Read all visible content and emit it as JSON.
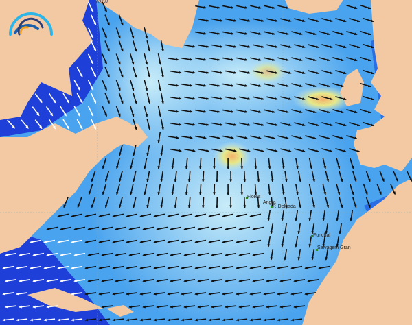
{
  "map": {
    "type": "wave-height-and-direction",
    "region": "North Atlantic",
    "colors": {
      "land": "#f2c9a2",
      "ocean_low": "#1e3fd8",
      "ocean_mid": "#4aa3ee",
      "ocean_high": "#bfe6f7",
      "swell_peak": "#f4b06a",
      "swell_warm": "#e6e88a",
      "arrow": "#111111",
      "arrow_coastal": "#ffffff"
    },
    "meridian_label": "63°W",
    "places": [
      {
        "name": "Flores"
      },
      {
        "name": "Angra"
      },
      {
        "name": "P. Delgada"
      },
      {
        "name": "Funchal"
      },
      {
        "name": "Selvagem Gran"
      }
    ],
    "logo": {
      "name": "logo-arc",
      "colors": [
        "#2bb5e8",
        "#1d5fa8",
        "#2b3f78",
        "#f4a020"
      ]
    }
  }
}
